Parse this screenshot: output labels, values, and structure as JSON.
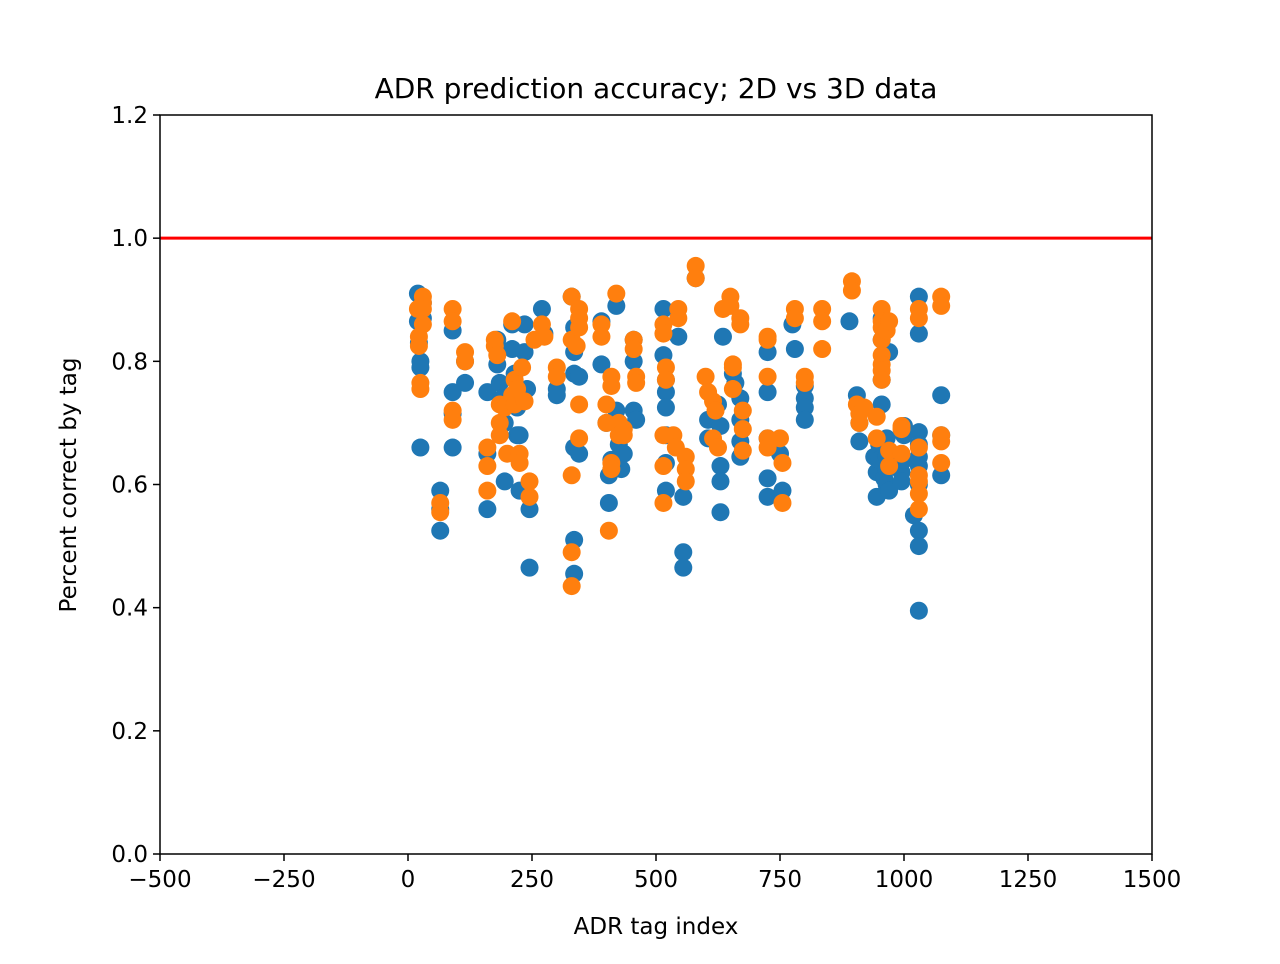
{
  "chart_data": {
    "type": "scatter",
    "title": "ADR prediction accuracy; 2D vs 3D data",
    "xlabel": "ADR tag index",
    "ylabel": "Percent correct by tag",
    "xlim": [
      -500,
      1500
    ],
    "ylim": [
      0.0,
      1.2
    ],
    "xticks": [
      -500,
      -250,
      0,
      250,
      500,
      750,
      1000,
      1250,
      1500
    ],
    "xtick_labels": [
      "−500",
      "−250",
      "0",
      "250",
      "500",
      "750",
      "1000",
      "1250",
      "1500"
    ],
    "yticks": [
      0.0,
      0.2,
      0.4,
      0.6,
      0.8,
      1.0,
      1.2
    ],
    "ytick_labels": [
      "0.0",
      "0.2",
      "0.4",
      "0.6",
      "0.8",
      "1.0",
      "1.2"
    ],
    "grid": false,
    "reference_line": {
      "y": 1.0,
      "color": "#ff0000"
    },
    "series": [
      {
        "color": "#1f77b4",
        "points": [
          [
            20,
            0.91
          ],
          [
            20,
            0.865
          ],
          [
            22,
            0.83
          ],
          [
            25,
            0.8
          ],
          [
            25,
            0.79
          ],
          [
            25,
            0.66
          ],
          [
            30,
            0.895
          ],
          [
            30,
            0.87
          ],
          [
            65,
            0.59
          ],
          [
            65,
            0.56
          ],
          [
            65,
            0.525
          ],
          [
            90,
            0.85
          ],
          [
            90,
            0.75
          ],
          [
            90,
            0.715
          ],
          [
            90,
            0.66
          ],
          [
            115,
            0.765
          ],
          [
            115,
            0.8
          ],
          [
            160,
            0.75
          ],
          [
            160,
            0.65
          ],
          [
            160,
            0.56
          ],
          [
            180,
            0.835
          ],
          [
            180,
            0.795
          ],
          [
            185,
            0.765
          ],
          [
            190,
            0.74
          ],
          [
            195,
            0.7
          ],
          [
            195,
            0.605
          ],
          [
            210,
            0.86
          ],
          [
            210,
            0.82
          ],
          [
            215,
            0.78
          ],
          [
            215,
            0.74
          ],
          [
            220,
            0.725
          ],
          [
            220,
            0.68
          ],
          [
            225,
            0.68
          ],
          [
            225,
            0.59
          ],
          [
            235,
            0.86
          ],
          [
            235,
            0.815
          ],
          [
            240,
            0.755
          ],
          [
            245,
            0.56
          ],
          [
            245,
            0.465
          ],
          [
            270,
            0.885
          ],
          [
            275,
            0.845
          ],
          [
            300,
            0.755
          ],
          [
            300,
            0.745
          ],
          [
            330,
            0.905
          ],
          [
            335,
            0.855
          ],
          [
            335,
            0.815
          ],
          [
            335,
            0.78
          ],
          [
            335,
            0.66
          ],
          [
            335,
            0.51
          ],
          [
            335,
            0.455
          ],
          [
            345,
            0.775
          ],
          [
            345,
            0.65
          ],
          [
            390,
            0.865
          ],
          [
            390,
            0.795
          ],
          [
            400,
            0.7
          ],
          [
            405,
            0.57
          ],
          [
            405,
            0.615
          ],
          [
            410,
            0.64
          ],
          [
            420,
            0.89
          ],
          [
            420,
            0.72
          ],
          [
            425,
            0.7
          ],
          [
            425,
            0.665
          ],
          [
            430,
            0.625
          ],
          [
            435,
            0.65
          ],
          [
            455,
            0.835
          ],
          [
            455,
            0.8
          ],
          [
            455,
            0.72
          ],
          [
            460,
            0.705
          ],
          [
            515,
            0.885
          ],
          [
            515,
            0.81
          ],
          [
            520,
            0.77
          ],
          [
            520,
            0.75
          ],
          [
            520,
            0.725
          ],
          [
            520,
            0.68
          ],
          [
            520,
            0.635
          ],
          [
            520,
            0.59
          ],
          [
            545,
            0.84
          ],
          [
            555,
            0.58
          ],
          [
            555,
            0.49
          ],
          [
            555,
            0.465
          ],
          [
            580,
            0.935
          ],
          [
            605,
            0.705
          ],
          [
            605,
            0.675
          ],
          [
            625,
            0.73
          ],
          [
            630,
            0.695
          ],
          [
            630,
            0.63
          ],
          [
            630,
            0.605
          ],
          [
            630,
            0.555
          ],
          [
            635,
            0.84
          ],
          [
            655,
            0.78
          ],
          [
            660,
            0.765
          ],
          [
            670,
            0.74
          ],
          [
            670,
            0.705
          ],
          [
            670,
            0.67
          ],
          [
            670,
            0.645
          ],
          [
            725,
            0.815
          ],
          [
            725,
            0.75
          ],
          [
            725,
            0.675
          ],
          [
            725,
            0.61
          ],
          [
            725,
            0.58
          ],
          [
            750,
            0.65
          ],
          [
            755,
            0.59
          ],
          [
            775,
            0.86
          ],
          [
            780,
            0.82
          ],
          [
            800,
            0.76
          ],
          [
            800,
            0.74
          ],
          [
            800,
            0.725
          ],
          [
            800,
            0.705
          ],
          [
            890,
            0.865
          ],
          [
            905,
            0.745
          ],
          [
            910,
            0.725
          ],
          [
            910,
            0.7
          ],
          [
            910,
            0.67
          ],
          [
            940,
            0.645
          ],
          [
            945,
            0.62
          ],
          [
            945,
            0.58
          ],
          [
            950,
            0.665
          ],
          [
            950,
            0.64
          ],
          [
            955,
            0.87
          ],
          [
            955,
            0.835
          ],
          [
            955,
            0.77
          ],
          [
            955,
            0.73
          ],
          [
            960,
            0.61
          ],
          [
            965,
            0.675
          ],
          [
            965,
            0.645
          ],
          [
            965,
            0.625
          ],
          [
            965,
            0.6
          ],
          [
            970,
            0.59
          ],
          [
            970,
            0.815
          ],
          [
            990,
            0.64
          ],
          [
            995,
            0.62
          ],
          [
            995,
            0.605
          ],
          [
            1000,
            0.695
          ],
          [
            1000,
            0.68
          ],
          [
            1000,
            0.64
          ],
          [
            1020,
            0.55
          ],
          [
            1030,
            0.905
          ],
          [
            1030,
            0.845
          ],
          [
            1030,
            0.685
          ],
          [
            1030,
            0.665
          ],
          [
            1030,
            0.645
          ],
          [
            1030,
            0.63
          ],
          [
            1030,
            0.6
          ],
          [
            1030,
            0.525
          ],
          [
            1030,
            0.5
          ],
          [
            1030,
            0.395
          ],
          [
            1075,
            0.745
          ],
          [
            1075,
            0.68
          ],
          [
            1075,
            0.615
          ]
        ]
      },
      {
        "color": "#ff7f0e",
        "points": [
          [
            20,
            0.885
          ],
          [
            22,
            0.84
          ],
          [
            22,
            0.825
          ],
          [
            25,
            0.765
          ],
          [
            25,
            0.755
          ],
          [
            30,
            0.905
          ],
          [
            30,
            0.895
          ],
          [
            30,
            0.885
          ],
          [
            30,
            0.86
          ],
          [
            65,
            0.57
          ],
          [
            65,
            0.555
          ],
          [
            90,
            0.885
          ],
          [
            90,
            0.865
          ],
          [
            90,
            0.72
          ],
          [
            90,
            0.705
          ],
          [
            115,
            0.815
          ],
          [
            115,
            0.8
          ],
          [
            160,
            0.66
          ],
          [
            160,
            0.63
          ],
          [
            160,
            0.59
          ],
          [
            175,
            0.835
          ],
          [
            175,
            0.825
          ],
          [
            180,
            0.81
          ],
          [
            185,
            0.73
          ],
          [
            185,
            0.7
          ],
          [
            185,
            0.68
          ],
          [
            195,
            0.725
          ],
          [
            200,
            0.65
          ],
          [
            210,
            0.865
          ],
          [
            210,
            0.745
          ],
          [
            215,
            0.77
          ],
          [
            215,
            0.73
          ],
          [
            220,
            0.755
          ],
          [
            225,
            0.65
          ],
          [
            225,
            0.635
          ],
          [
            230,
            0.79
          ],
          [
            235,
            0.735
          ],
          [
            245,
            0.605
          ],
          [
            245,
            0.58
          ],
          [
            255,
            0.835
          ],
          [
            270,
            0.86
          ],
          [
            275,
            0.84
          ],
          [
            300,
            0.79
          ],
          [
            300,
            0.775
          ],
          [
            330,
            0.905
          ],
          [
            330,
            0.835
          ],
          [
            330,
            0.615
          ],
          [
            330,
            0.49
          ],
          [
            330,
            0.435
          ],
          [
            340,
            0.825
          ],
          [
            345,
            0.885
          ],
          [
            345,
            0.87
          ],
          [
            345,
            0.855
          ],
          [
            345,
            0.73
          ],
          [
            345,
            0.675
          ],
          [
            390,
            0.86
          ],
          [
            390,
            0.84
          ],
          [
            400,
            0.73
          ],
          [
            400,
            0.7
          ],
          [
            405,
            0.525
          ],
          [
            410,
            0.775
          ],
          [
            410,
            0.76
          ],
          [
            410,
            0.635
          ],
          [
            410,
            0.625
          ],
          [
            420,
            0.91
          ],
          [
            425,
            0.7
          ],
          [
            425,
            0.68
          ],
          [
            435,
            0.69
          ],
          [
            435,
            0.68
          ],
          [
            455,
            0.835
          ],
          [
            455,
            0.82
          ],
          [
            460,
            0.775
          ],
          [
            460,
            0.765
          ],
          [
            515,
            0.86
          ],
          [
            515,
            0.845
          ],
          [
            520,
            0.79
          ],
          [
            520,
            0.77
          ],
          [
            515,
            0.68
          ],
          [
            515,
            0.63
          ],
          [
            515,
            0.57
          ],
          [
            535,
            0.68
          ],
          [
            540,
            0.66
          ],
          [
            545,
            0.885
          ],
          [
            545,
            0.87
          ],
          [
            560,
            0.645
          ],
          [
            560,
            0.625
          ],
          [
            560,
            0.605
          ],
          [
            580,
            0.955
          ],
          [
            580,
            0.935
          ],
          [
            600,
            0.775
          ],
          [
            605,
            0.75
          ],
          [
            615,
            0.735
          ],
          [
            615,
            0.675
          ],
          [
            620,
            0.72
          ],
          [
            625,
            0.66
          ],
          [
            635,
            0.885
          ],
          [
            650,
            0.905
          ],
          [
            650,
            0.89
          ],
          [
            655,
            0.795
          ],
          [
            655,
            0.79
          ],
          [
            655,
            0.755
          ],
          [
            670,
            0.87
          ],
          [
            670,
            0.86
          ],
          [
            675,
            0.72
          ],
          [
            675,
            0.69
          ],
          [
            675,
            0.655
          ],
          [
            725,
            0.84
          ],
          [
            725,
            0.835
          ],
          [
            725,
            0.775
          ],
          [
            725,
            0.675
          ],
          [
            725,
            0.66
          ],
          [
            750,
            0.675
          ],
          [
            755,
            0.635
          ],
          [
            755,
            0.57
          ],
          [
            780,
            0.885
          ],
          [
            780,
            0.87
          ],
          [
            800,
            0.775
          ],
          [
            800,
            0.765
          ],
          [
            835,
            0.885
          ],
          [
            835,
            0.865
          ],
          [
            835,
            0.82
          ],
          [
            895,
            0.93
          ],
          [
            895,
            0.915
          ],
          [
            905,
            0.73
          ],
          [
            910,
            0.715
          ],
          [
            910,
            0.7
          ],
          [
            920,
            0.725
          ],
          [
            945,
            0.71
          ],
          [
            945,
            0.675
          ],
          [
            955,
            0.885
          ],
          [
            955,
            0.865
          ],
          [
            955,
            0.855
          ],
          [
            955,
            0.835
          ],
          [
            955,
            0.81
          ],
          [
            955,
            0.795
          ],
          [
            955,
            0.785
          ],
          [
            955,
            0.77
          ],
          [
            965,
            0.85
          ],
          [
            970,
            0.865
          ],
          [
            970,
            0.655
          ],
          [
            970,
            0.63
          ],
          [
            995,
            0.695
          ],
          [
            995,
            0.69
          ],
          [
            995,
            0.65
          ],
          [
            1030,
            0.885
          ],
          [
            1030,
            0.87
          ],
          [
            1030,
            0.66
          ],
          [
            1030,
            0.615
          ],
          [
            1030,
            0.605
          ],
          [
            1030,
            0.585
          ],
          [
            1030,
            0.56
          ],
          [
            1075,
            0.905
          ],
          [
            1075,
            0.89
          ],
          [
            1075,
            0.68
          ],
          [
            1075,
            0.67
          ],
          [
            1075,
            0.635
          ]
        ]
      }
    ]
  }
}
